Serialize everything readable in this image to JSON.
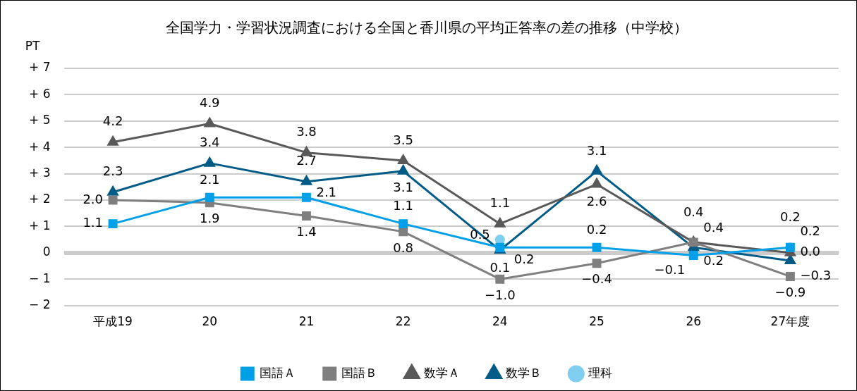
{
  "chart_data": {
    "type": "line",
    "title": "全国学力・学習状況調査における全国と香川県の平均正答率の差の推移（中学校）",
    "ylabel": "PT",
    "categories": [
      "平成19",
      "20",
      "21",
      "22",
      "24",
      "25",
      "26",
      "27年度"
    ],
    "ylim": [
      -2,
      7
    ],
    "yticks": [
      {
        "value": -2,
        "label": "− 2"
      },
      {
        "value": -1,
        "label": "− 1"
      },
      0,
      {
        "value": 1,
        "label": "+ 1"
      },
      {
        "value": 2,
        "label": "+ 2"
      },
      {
        "value": 3,
        "label": "+ 3"
      },
      {
        "value": 4,
        "label": "+ 4"
      },
      {
        "value": 5,
        "label": "+ 5"
      },
      {
        "value": 6,
        "label": "+ 6"
      },
      {
        "value": 7,
        "label": "+ 7"
      }
    ],
    "grid": "y",
    "legend": "bottom",
    "series": [
      {
        "name": "国語Ａ",
        "color": "#00a0e9",
        "marker": "square",
        "values": [
          1.1,
          2.1,
          2.1,
          1.1,
          0.2,
          0.2,
          -0.1,
          0.2
        ],
        "value_labels": [
          "1.1",
          "2.1",
          "2.1",
          "1.1",
          "0.2",
          "0.2",
          "−0.1",
          "0.2"
        ]
      },
      {
        "name": "国語Ｂ",
        "color": "#7f7f7f",
        "marker": "square",
        "values": [
          2.0,
          1.9,
          1.4,
          0.8,
          -1.0,
          -0.4,
          0.4,
          -0.9
        ],
        "value_labels": [
          "2.0",
          "1.9",
          "1.4",
          "0.8",
          "−1.0",
          "−0.4",
          "0.4",
          "−0.9"
        ]
      },
      {
        "name": "数学Ａ",
        "color": "#595959",
        "marker": "triangle",
        "values": [
          4.2,
          4.9,
          3.8,
          3.5,
          1.1,
          2.6,
          0.4,
          0.0
        ],
        "value_labels": [
          "4.2",
          "4.9",
          "3.8",
          "3.5",
          "1.1",
          "2.6",
          "0.4",
          "0.0"
        ]
      },
      {
        "name": "数学Ｂ",
        "color": "#005b87",
        "marker": "triangle",
        "values": [
          2.3,
          3.4,
          2.7,
          3.1,
          0.1,
          3.1,
          0.2,
          -0.3
        ],
        "value_labels": [
          "2.3",
          "3.4",
          "2.7",
          "3.1",
          "0.1",
          "3.1",
          "0.2",
          "−0.3"
        ]
      },
      {
        "name": "理科",
        "type": "scatter",
        "color": "#7fcdef",
        "marker": "circle",
        "values": [
          null,
          null,
          null,
          null,
          0.5,
          null,
          null,
          0.2
        ],
        "value_labels": [
          null,
          null,
          null,
          null,
          "0.5",
          null,
          null,
          "0.2"
        ]
      }
    ]
  }
}
